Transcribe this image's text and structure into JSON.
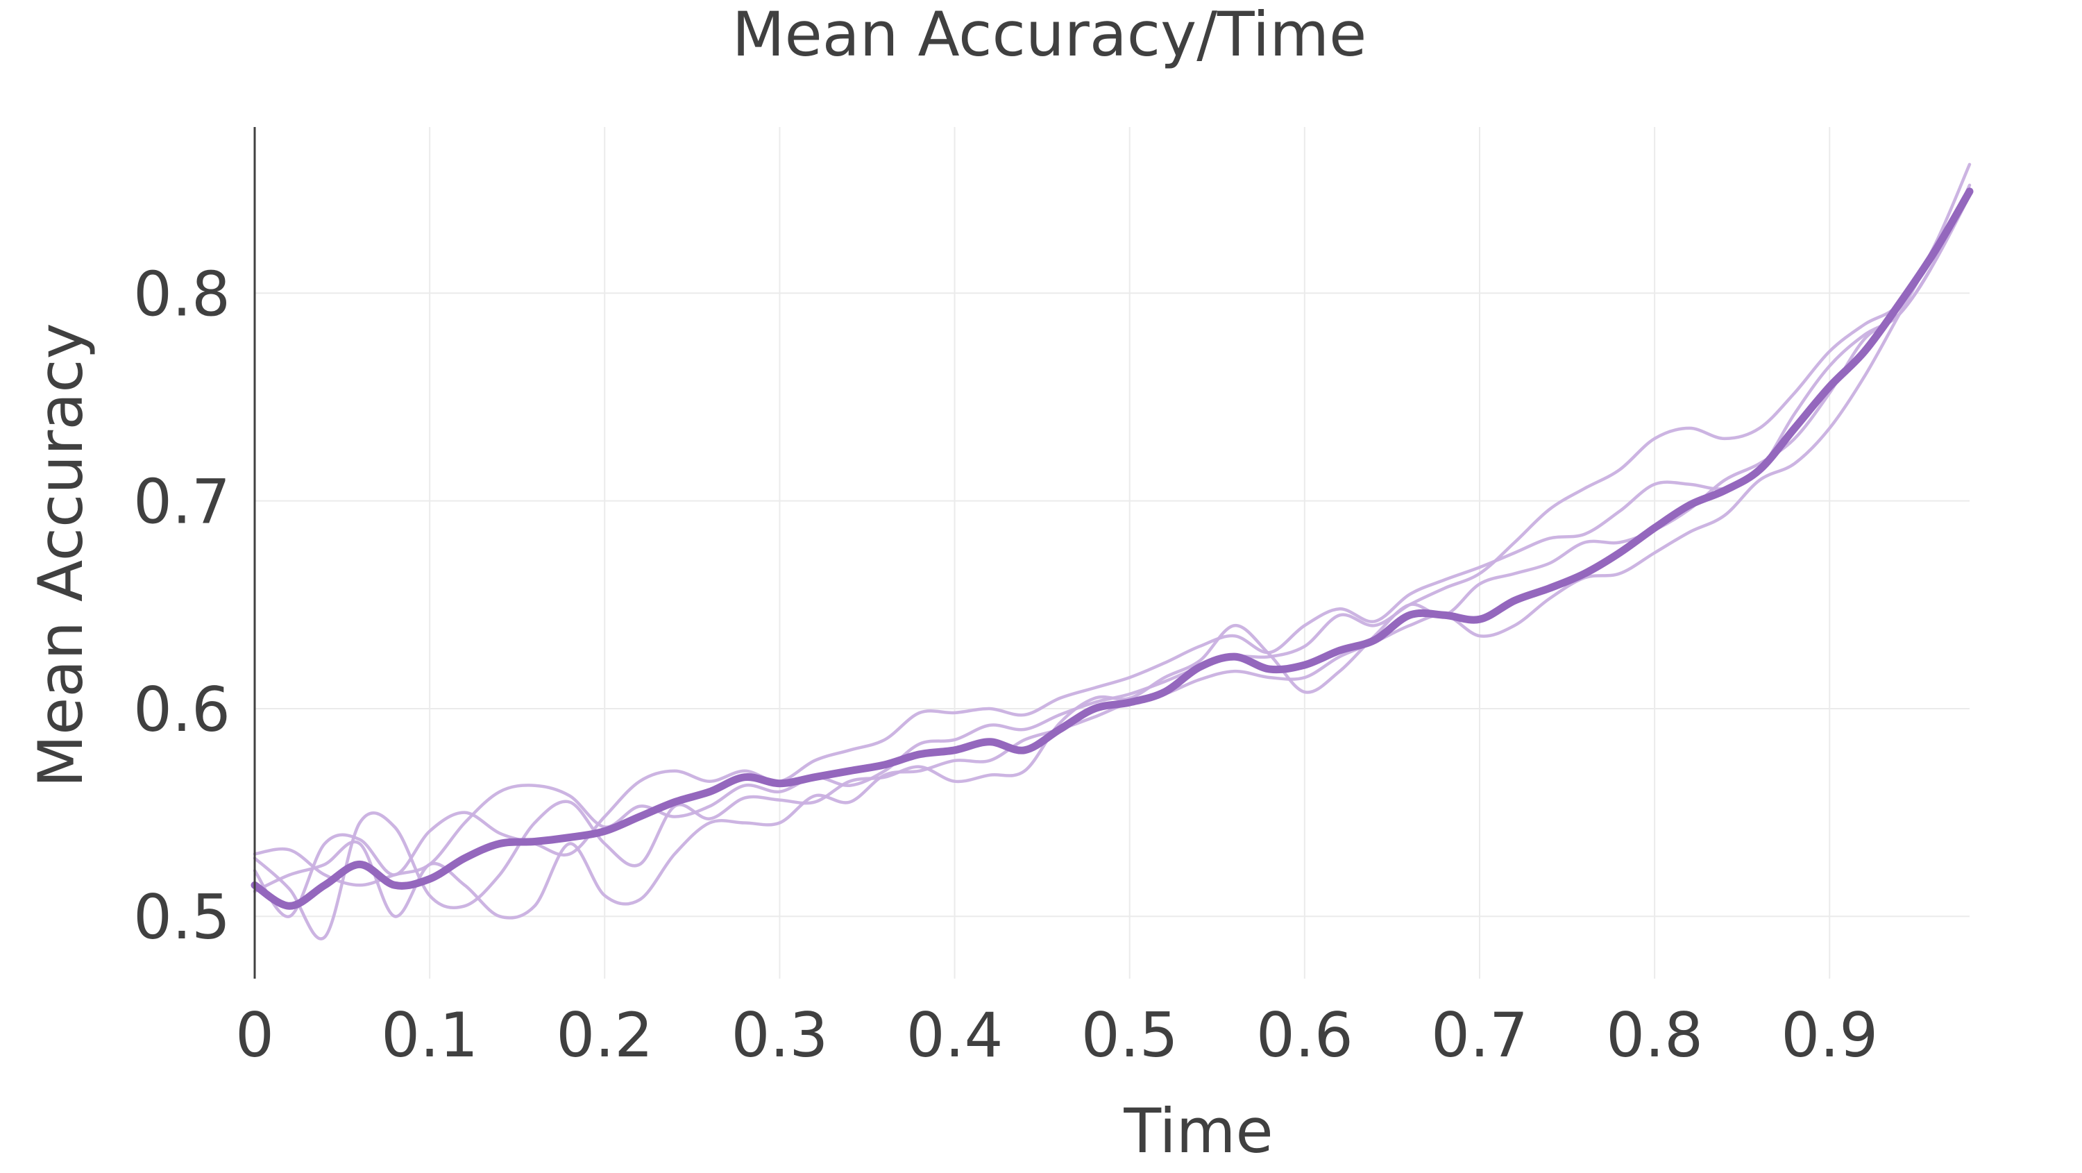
{
  "chart_data": {
    "type": "line",
    "title": "Mean Accuracy/Time",
    "xlabel": "Time",
    "ylabel": "Mean Accuracy",
    "xlim": [
      0,
      0.98
    ],
    "ylim": [
      0.47,
      0.88
    ],
    "x_ticks": [
      0,
      0.1,
      0.2,
      0.3,
      0.4,
      0.5,
      0.6,
      0.7,
      0.8,
      0.9
    ],
    "x_tick_labels": [
      "0",
      "0.1",
      "0.2",
      "0.3",
      "0.4",
      "0.5",
      "0.6",
      "0.7",
      "0.8",
      "0.9"
    ],
    "y_ticks": [
      0.5,
      0.6,
      0.7,
      0.8
    ],
    "y_tick_labels": [
      "0.5",
      "0.6",
      "0.7",
      "0.8"
    ],
    "grid": true,
    "legend": false,
    "colors": {
      "mean_line": "#9467bd",
      "run_line": "#c9b0e0",
      "grid": "#ebebeb",
      "axis": "#404040"
    },
    "x": [
      0,
      0.02,
      0.04,
      0.06,
      0.08,
      0.1,
      0.12,
      0.14,
      0.16,
      0.18,
      0.2,
      0.22,
      0.24,
      0.26,
      0.28,
      0.3,
      0.32,
      0.34,
      0.36,
      0.38,
      0.4,
      0.42,
      0.44,
      0.46,
      0.48,
      0.5,
      0.52,
      0.54,
      0.56,
      0.58,
      0.6,
      0.62,
      0.64,
      0.66,
      0.68,
      0.7,
      0.72,
      0.74,
      0.76,
      0.78,
      0.8,
      0.82,
      0.84,
      0.86,
      0.88,
      0.9,
      0.92,
      0.94,
      0.96,
      0.98
    ],
    "series": [
      {
        "role": "mean",
        "values": [
          0.515,
          0.505,
          0.515,
          0.525,
          0.515,
          0.518,
          0.528,
          0.535,
          0.536,
          0.538,
          0.541,
          0.548,
          0.555,
          0.56,
          0.567,
          0.564,
          0.567,
          0.57,
          0.573,
          0.578,
          0.58,
          0.584,
          0.58,
          0.59,
          0.6,
          0.603,
          0.608,
          0.62,
          0.625,
          0.619,
          0.621,
          0.628,
          0.633,
          0.645,
          0.645,
          0.643,
          0.652,
          0.658,
          0.665,
          0.675,
          0.687,
          0.698,
          0.705,
          0.715,
          0.735,
          0.755,
          0.772,
          0.795,
          0.82,
          0.849
        ]
      },
      {
        "role": "run",
        "values": [
          0.53,
          0.532,
          0.52,
          0.515,
          0.52,
          0.525,
          0.545,
          0.56,
          0.563,
          0.558,
          0.543,
          0.553,
          0.548,
          0.553,
          0.563,
          0.56,
          0.567,
          0.563,
          0.57,
          0.583,
          0.585,
          0.592,
          0.59,
          0.597,
          0.603,
          0.607,
          0.613,
          0.62,
          0.625,
          0.625,
          0.63,
          0.645,
          0.64,
          0.65,
          0.658,
          0.665,
          0.68,
          0.696,
          0.706,
          0.715,
          0.73,
          0.735,
          0.73,
          0.735,
          0.752,
          0.772,
          0.785,
          0.795,
          0.823,
          0.862
        ]
      },
      {
        "role": "run",
        "values": [
          0.522,
          0.5,
          0.535,
          0.537,
          0.52,
          0.541,
          0.55,
          0.54,
          0.535,
          0.53,
          0.548,
          0.565,
          0.57,
          0.565,
          0.57,
          0.565,
          0.575,
          0.58,
          0.585,
          0.598,
          0.598,
          0.6,
          0.597,
          0.605,
          0.61,
          0.615,
          0.622,
          0.63,
          0.635,
          0.627,
          0.64,
          0.648,
          0.642,
          0.655,
          0.662,
          0.668,
          0.675,
          0.682,
          0.684,
          0.695,
          0.708,
          0.708,
          0.706,
          0.715,
          0.742,
          0.765,
          0.78,
          0.79,
          0.815,
          0.847
        ]
      },
      {
        "role": "run",
        "values": [
          0.528,
          0.513,
          0.49,
          0.545,
          0.543,
          0.51,
          0.505,
          0.52,
          0.545,
          0.555,
          0.535,
          0.525,
          0.553,
          0.547,
          0.557,
          0.556,
          0.555,
          0.565,
          0.567,
          0.572,
          0.565,
          0.568,
          0.57,
          0.593,
          0.605,
          0.605,
          0.615,
          0.623,
          0.64,
          0.626,
          0.608,
          0.618,
          0.635,
          0.65,
          0.645,
          0.66,
          0.665,
          0.67,
          0.68,
          0.68,
          0.686,
          0.696,
          0.71,
          0.718,
          0.73,
          0.752,
          0.778,
          0.79,
          0.815,
          0.852
        ]
      },
      {
        "role": "run",
        "values": [
          0.512,
          0.52,
          0.525,
          0.535,
          0.5,
          0.525,
          0.515,
          0.5,
          0.505,
          0.535,
          0.51,
          0.508,
          0.53,
          0.545,
          0.545,
          0.545,
          0.558,
          0.555,
          0.568,
          0.57,
          0.575,
          0.575,
          0.585,
          0.59,
          0.596,
          0.603,
          0.607,
          0.614,
          0.618,
          0.615,
          0.615,
          0.625,
          0.632,
          0.64,
          0.645,
          0.635,
          0.64,
          0.653,
          0.663,
          0.665,
          0.675,
          0.685,
          0.693,
          0.71,
          0.718,
          0.735,
          0.76,
          0.79,
          0.82,
          0.848
        ]
      }
    ]
  }
}
